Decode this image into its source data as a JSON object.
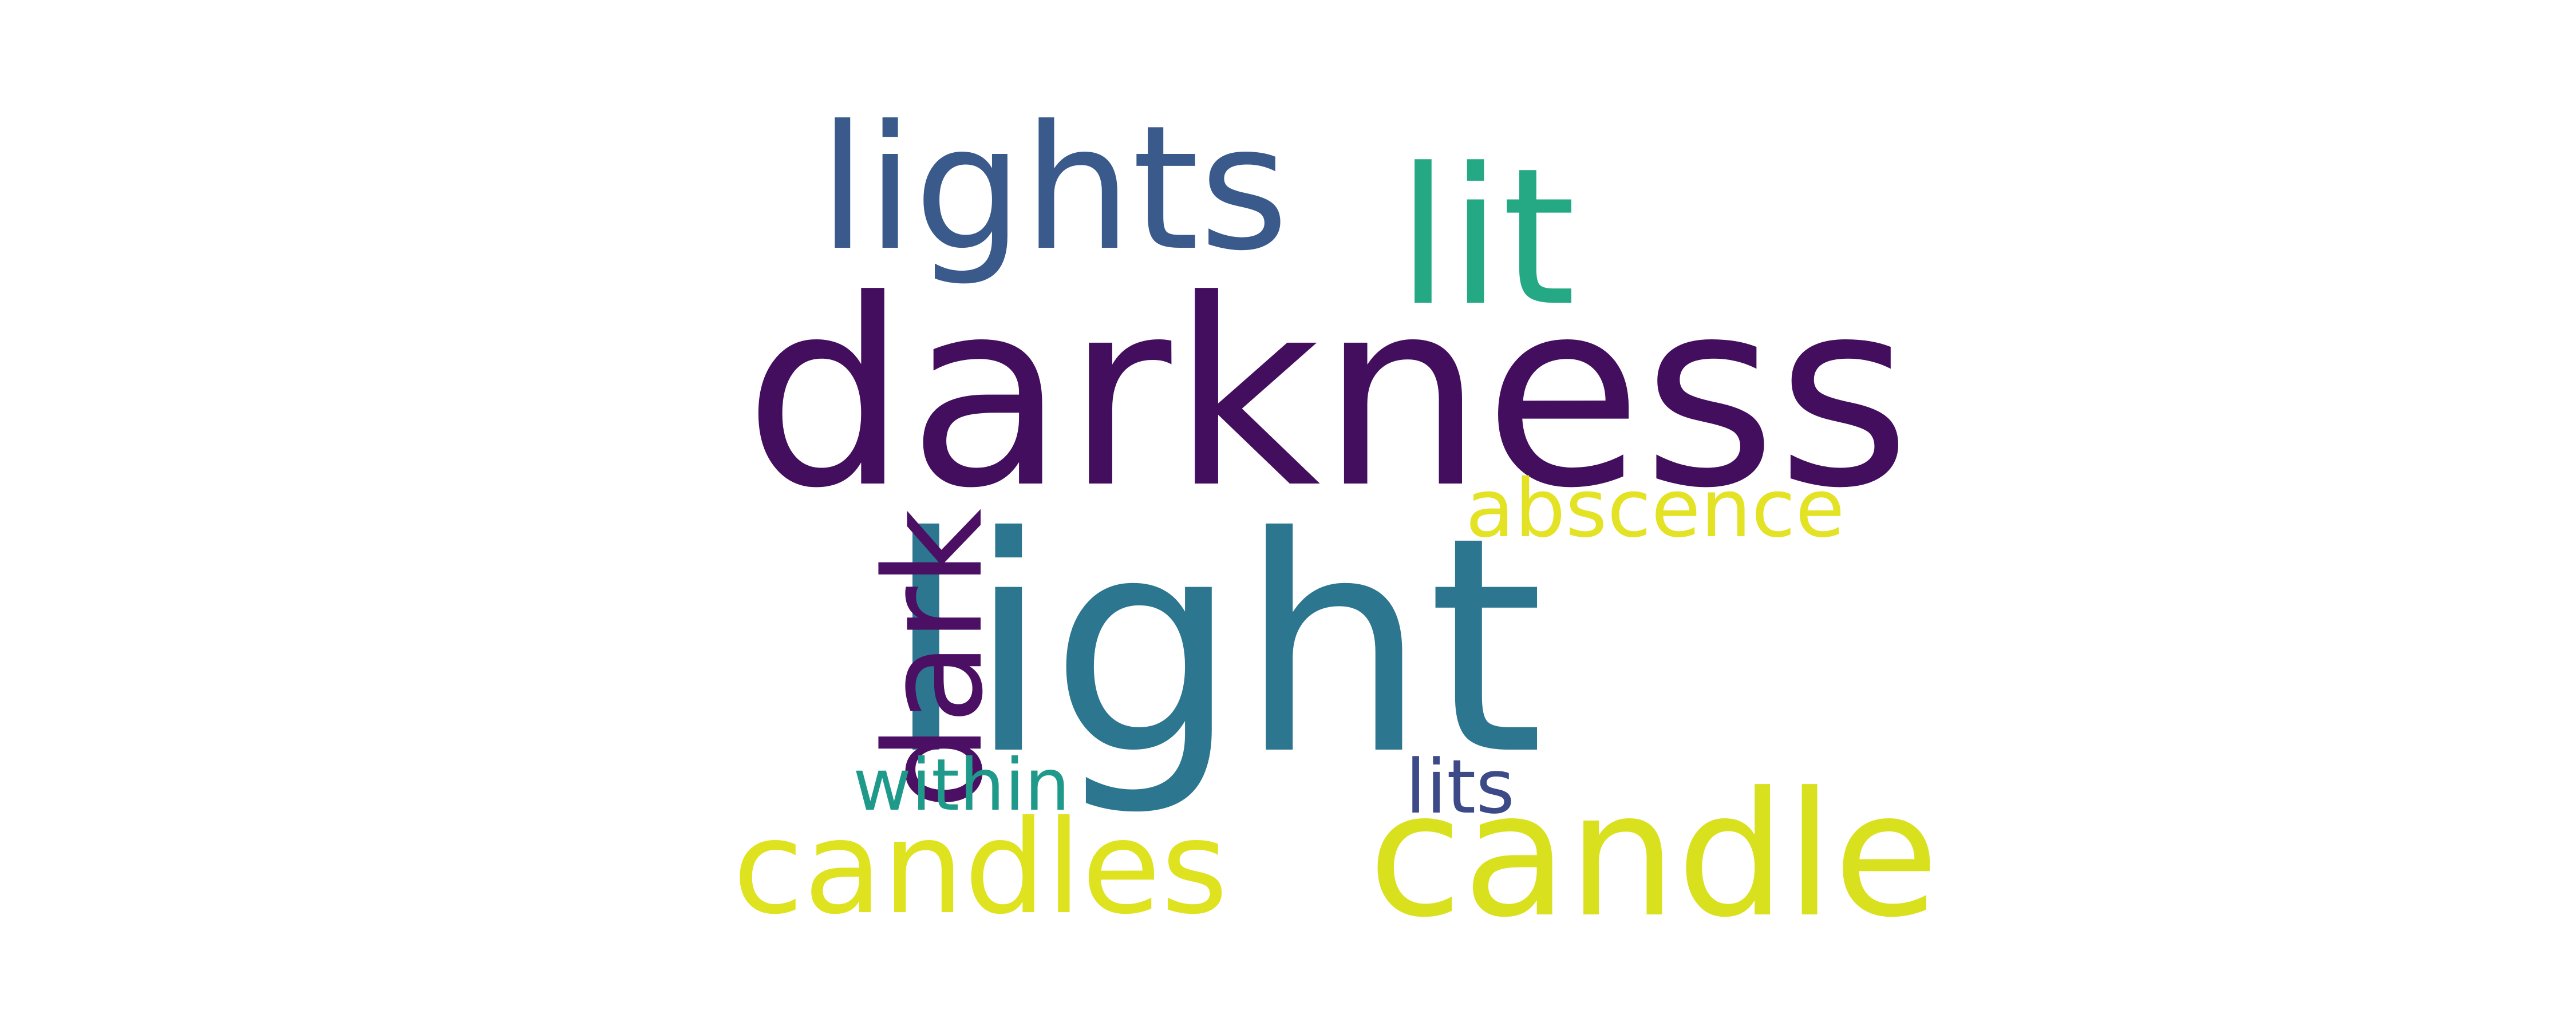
{
  "words": {
    "light": {
      "text": "light",
      "color": "#2c7690"
    },
    "darkness": {
      "text": "darkness",
      "color": "#440e5f"
    },
    "candle": {
      "text": "candle",
      "color": "#d9e11f"
    },
    "lit": {
      "text": "lit",
      "color": "#25a884"
    },
    "lights": {
      "text": "lights",
      "color": "#3b5a8c"
    },
    "candles": {
      "text": "candles",
      "color": "#dfe21e"
    },
    "dark": {
      "text": "dark",
      "color": "#4b0f63"
    },
    "abscence": {
      "text": "abscence",
      "color": "#e3e224"
    },
    "within": {
      "text": "within",
      "color": "#1f9a8a"
    },
    "lits": {
      "text": "lits",
      "color": "#3d4a88"
    }
  }
}
